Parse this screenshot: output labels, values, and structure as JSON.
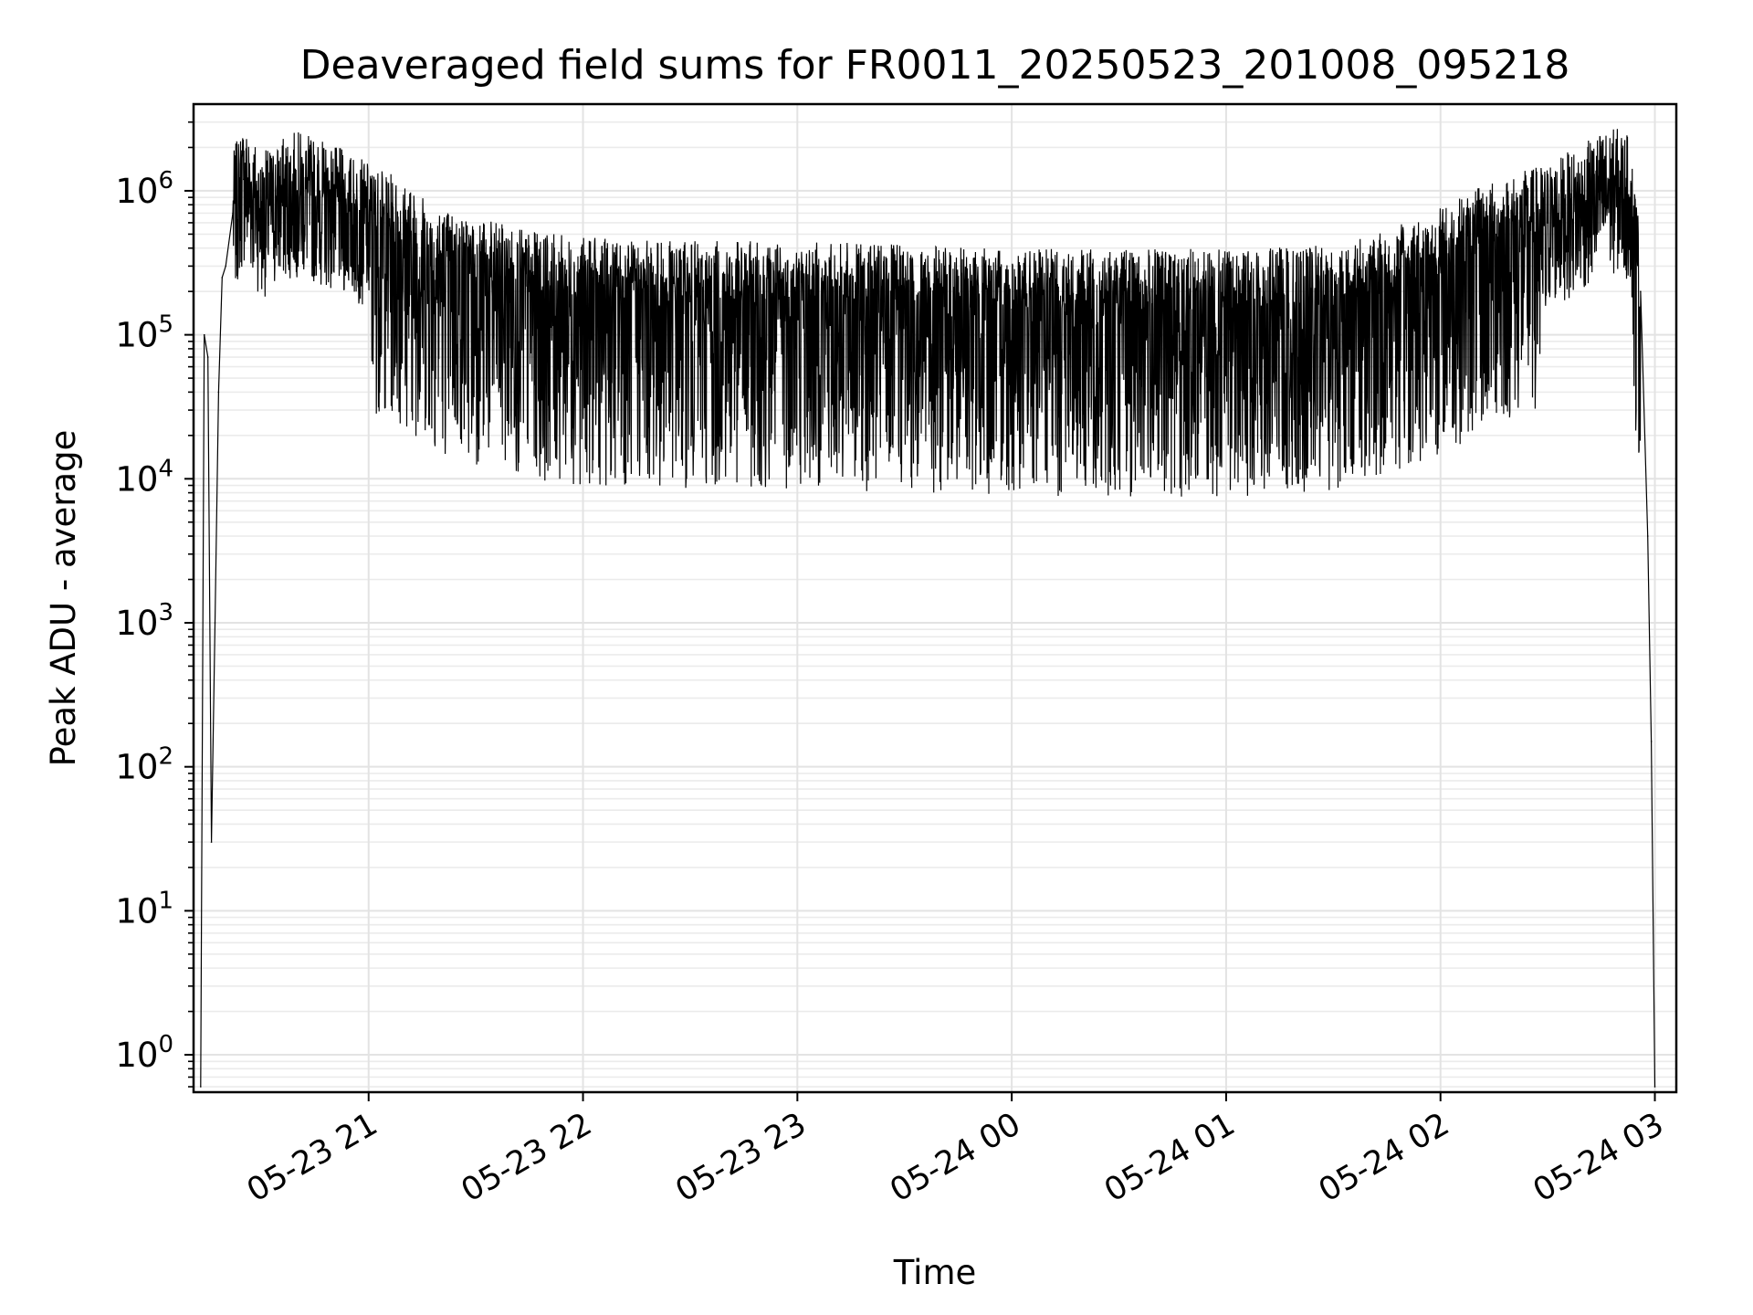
{
  "chart_data": {
    "type": "line",
    "title": "Deaveraged field sums for FR0011_20250523_201008_095218",
    "xlabel": "Time",
    "ylabel": "Peak ADU - average",
    "yscale": "log",
    "ylim": [
      0.55,
      4000000
    ],
    "xlim": [
      "2025-05-23 20:11",
      "2025-05-24 03:06"
    ],
    "x_ticks": [
      "05-23 21",
      "05-23 22",
      "05-23 23",
      "05-24 00",
      "05-24 01",
      "05-24 02",
      "05-24 03"
    ],
    "y_ticks": [
      {
        "base": "10",
        "exp": "0",
        "value": 1
      },
      {
        "base": "10",
        "exp": "1",
        "value": 10
      },
      {
        "base": "10",
        "exp": "2",
        "value": 100
      },
      {
        "base": "10",
        "exp": "3",
        "value": 1000
      },
      {
        "base": "10",
        "exp": "4",
        "value": 10000
      },
      {
        "base": "10",
        "exp": "5",
        "value": 100000
      },
      {
        "base": "10",
        "exp": "6",
        "value": 1000000
      }
    ],
    "grid": true,
    "line_color": "#000000",
    "series": [
      {
        "x": [
          "2025-05-23 20:13",
          "2025-05-23 20:14",
          "2025-05-23 20:15",
          "2025-05-23 20:16",
          "2025-05-23 20:17",
          "2025-05-23 20:18",
          "2025-05-23 20:19",
          "2025-05-23 20:20",
          "2025-05-23 20:22",
          "2025-05-23 20:25",
          "2025-05-23 20:28",
          "2025-05-23 20:30",
          "2025-05-23 20:33",
          "2025-05-23 20:36",
          "2025-05-23 20:40",
          "2025-05-23 20:45",
          "2025-05-23 20:50",
          "2025-05-23 21:00",
          "2025-05-23 21:10",
          "2025-05-23 21:20",
          "2025-05-23 21:30",
          "2025-05-23 21:45",
          "2025-05-23 22:00",
          "2025-05-23 22:30",
          "2025-05-23 23:00",
          "2025-05-23 23:30",
          "2025-05-24 00:00",
          "2025-05-24 00:30",
          "2025-05-24 01:00",
          "2025-05-24 01:30",
          "2025-05-24 01:45",
          "2025-05-24 02:00",
          "2025-05-24 02:15",
          "2025-05-24 02:30",
          "2025-05-24 02:40",
          "2025-05-24 02:45",
          "2025-05-24 02:50",
          "2025-05-24 02:53",
          "2025-05-24 02:56",
          "2025-05-24 02:58",
          "2025-05-24 02:59",
          "2025-05-24 03:00"
        ],
        "y": [
          0.6,
          100000,
          70000,
          30,
          1000,
          40000,
          250000,
          300000,
          700000,
          1200000,
          900000,
          700000,
          800000,
          900000,
          1000000,
          900000,
          800000,
          600000,
          450000,
          300000,
          250000,
          200000,
          180000,
          170000,
          170000,
          160000,
          150000,
          150000,
          150000,
          160000,
          200000,
          300000,
          450000,
          600000,
          800000,
          1000000,
          1050000,
          900000,
          200000,
          4000,
          150,
          0.6
        ]
      }
    ]
  }
}
